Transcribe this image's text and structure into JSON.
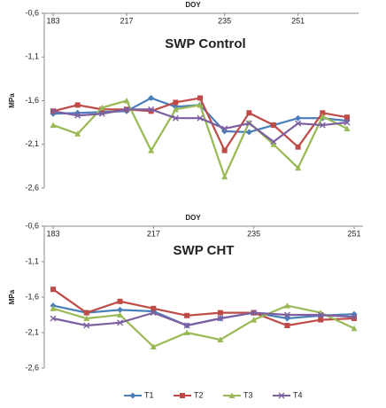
{
  "chart_data": [
    {
      "type": "line",
      "title": "SWP Control",
      "x_label": "DOY",
      "y_label": "MPa",
      "categories": [
        "183",
        null,
        null,
        "217",
        null,
        null,
        null,
        "235",
        null,
        null,
        "251",
        null,
        null
      ],
      "ylim": [
        -2.6,
        -0.6
      ],
      "yticks": [
        {
          "value": -0.6,
          "label": "-0,6"
        },
        {
          "value": -1.1,
          "label": "-1,1"
        },
        {
          "value": -1.6,
          "label": "-1,6"
        },
        {
          "value": -2.1,
          "label": "-2,1"
        },
        {
          "value": -2.6,
          "label": "-2,6"
        }
      ],
      "series": [
        {
          "color": "#4a7ebb",
          "values": [
            -1.75,
            -1.74,
            -1.73,
            -1.72,
            -1.57,
            -1.67,
            -1.65,
            -1.95,
            -1.96,
            -1.88,
            -1.8,
            -1.8,
            -1.83
          ]
        },
        {
          "color": "#be4b48",
          "values": [
            -1.72,
            -1.65,
            -1.7,
            -1.7,
            -1.72,
            -1.62,
            -1.57,
            -2.17,
            -1.74,
            -1.88,
            -2.13,
            -1.74,
            -1.79
          ]
        },
        {
          "color": "#98b954",
          "values": [
            -1.88,
            -1.98,
            -1.68,
            -1.6,
            -2.17,
            -1.7,
            -1.65,
            -2.47,
            -1.85,
            -2.1,
            -2.37,
            -1.78,
            -1.92
          ]
        },
        {
          "color": "#7d60a0",
          "values": [
            -1.72,
            -1.77,
            -1.75,
            -1.7,
            -1.7,
            -1.8,
            -1.8,
            -1.92,
            -1.86,
            -2.07,
            -1.86,
            -1.88,
            -1.85
          ]
        }
      ]
    },
    {
      "type": "line",
      "title": "SWP CHT",
      "x_label": "DOY",
      "y_label": "MPa",
      "categories": [
        "183",
        null,
        null,
        "217",
        null,
        null,
        "235",
        null,
        null,
        "251"
      ],
      "ylim": [
        -2.6,
        -0.6
      ],
      "yticks": [
        {
          "value": -0.6,
          "label": "-0,6"
        },
        {
          "value": -1.1,
          "label": "-1,1"
        },
        {
          "value": -1.6,
          "label": "-1,6"
        },
        {
          "value": -2.1,
          "label": "-2,1"
        },
        {
          "value": -2.6,
          "label": "-2,6"
        }
      ],
      "series": [
        {
          "name": "T1",
          "color": "#4a7ebb",
          "values": [
            -1.72,
            -1.82,
            -1.78,
            -1.8,
            -2.0,
            -1.9,
            -1.82,
            -1.9,
            -1.86,
            -1.84
          ]
        },
        {
          "name": "T2",
          "color": "#be4b48",
          "values": [
            -1.49,
            -1.82,
            -1.66,
            -1.76,
            -1.86,
            -1.82,
            -1.82,
            -2.0,
            -1.92,
            -1.9
          ]
        },
        {
          "name": "T3",
          "color": "#98b954",
          "values": [
            -1.76,
            -1.9,
            -1.85,
            -2.3,
            -2.1,
            -2.2,
            -1.92,
            -1.72,
            -1.82,
            -2.04
          ]
        },
        {
          "name": "T4",
          "color": "#7d60a0",
          "values": [
            -1.9,
            -2.0,
            -1.96,
            -1.82,
            -2.0,
            -1.9,
            -1.82,
            -1.85,
            -1.85,
            -1.88
          ]
        }
      ]
    }
  ]
}
